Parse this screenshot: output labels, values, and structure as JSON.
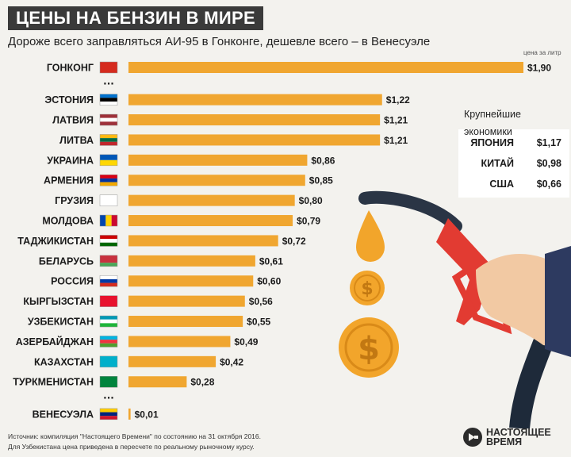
{
  "header": {
    "title": "ЦЕНЫ НА БЕНЗИН В МИРЕ",
    "subtitle": "Дороже всего заправляться АИ-95 в Гонконге, дешевле всего – в Венесуэле",
    "unit_label": "цена за литр"
  },
  "chart_data": {
    "type": "bar",
    "orientation": "horizontal",
    "categories": [
      "ГОНКОНГ",
      "ЭСТОНИЯ",
      "ЛАТВИЯ",
      "ЛИТВА",
      "УКРАИНА",
      "АРМЕНИЯ",
      "ГРУЗИЯ",
      "МОЛДОВА",
      "ТАДЖИКИСТАН",
      "БЕЛАРУСЬ",
      "РОССИЯ",
      "КЫРГЫЗСТАН",
      "УЗБЕКИСТАН",
      "АЗЕРБАЙДЖАН",
      "КАЗАХСТАН",
      "ТУРКМЕНИСТАН",
      "ВЕНЕСУЭЛА"
    ],
    "values": [
      1.9,
      1.22,
      1.21,
      1.21,
      0.86,
      0.85,
      0.8,
      0.79,
      0.72,
      0.61,
      0.6,
      0.56,
      0.55,
      0.49,
      0.42,
      0.28,
      0.01
    ],
    "value_labels": [
      "$1,90",
      "$1,22",
      "$1,21",
      "$1,21",
      "$0,86",
      "$0,85",
      "$0,80",
      "$0,79",
      "$0,72",
      "$0,61",
      "$0,60",
      "$0,56",
      "$0,55",
      "$0,49",
      "$0,42",
      "$0,28",
      "$0,01"
    ],
    "bar_color": "#f0a630",
    "gaps_after": [
      "ГОНКОНГ",
      "ТУРКМЕНИСТАН"
    ],
    "gap_marker": "...",
    "flag_icons": [
      "hong-kong-flag-icon",
      "estonia-flag-icon",
      "latvia-flag-icon",
      "lithuania-flag-icon",
      "ukraine-flag-icon",
      "armenia-flag-icon",
      "georgia-flag-icon",
      "moldova-flag-icon",
      "tajikistan-flag-icon",
      "belarus-flag-icon",
      "russia-flag-icon",
      "kyrgyzstan-flag-icon",
      "uzbekistan-flag-icon",
      "azerbaijan-flag-icon",
      "kazakhstan-flag-icon",
      "turkmenistan-flag-icon",
      "venezuela-flag-icon"
    ],
    "xlim": [
      0,
      1.9
    ]
  },
  "economies": {
    "title": "Крупнейшие экономики",
    "rows": [
      {
        "country": "ЯПОНИЯ",
        "value": "$1,17"
      },
      {
        "country": "КИТАЙ",
        "value": "$0,98"
      },
      {
        "country": "США",
        "value": "$0,66"
      }
    ]
  },
  "footer": {
    "source_line1": "Источник: компиляция \"Настоящего Времени\" по состоянию на 31 октября 2016.",
    "source_line2": "Для Узбекистана цена приведена в пересчете по реальному рыночному курсу.",
    "logo_line1": "НАСТОЯЩЕЕ",
    "logo_line2": "ВРЕМЯ"
  },
  "colors": {
    "background": "#f3f2ee",
    "title_bg": "#3a3a3a",
    "bar": "#f0a630",
    "pump_nozzle": "#e23b32",
    "coin": "#f2a52b"
  }
}
